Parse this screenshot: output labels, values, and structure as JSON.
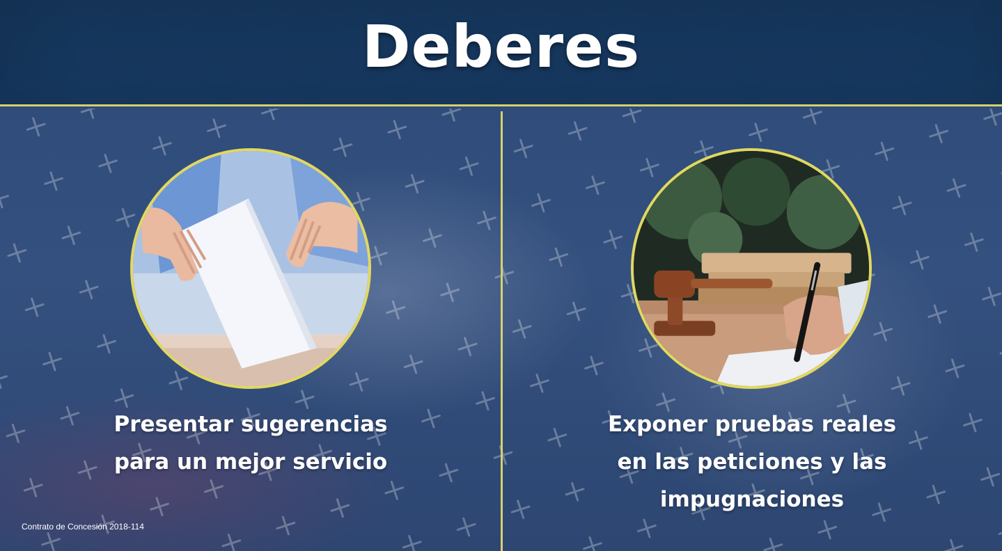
{
  "title": "Deberes",
  "left": {
    "caption_lines": [
      "Presentar sugerencias",
      "para un mejor servicio"
    ],
    "image_subject": "ballot-box-voting"
  },
  "right": {
    "caption_lines": [
      "Exponer pruebas reales",
      "en las peticiones y las",
      "impugnaciones"
    ],
    "image_subject": "judge-gavel-signing"
  },
  "footer": "Contrato de Concesión 2018-114",
  "colors": {
    "header": "#173a63",
    "accent": "#d9d06a",
    "background": "#2f4c78",
    "text": "#ffffff"
  }
}
